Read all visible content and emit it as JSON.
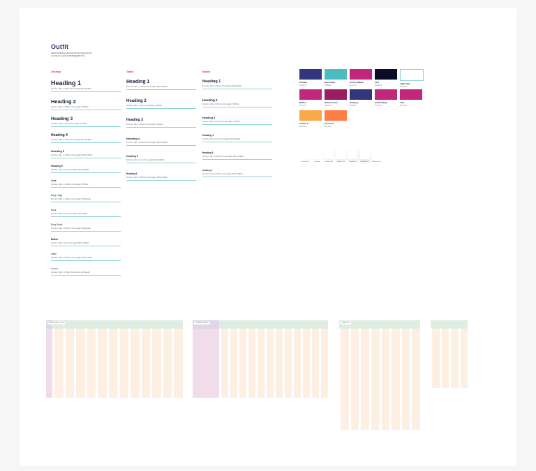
{
  "page": {
    "title": "Outfit",
    "character_set": "AaBbCcDdEeFfGgHhIiJjKkLlMmNnOoPpQqRrSsTtUuVvWwXxYyZz0123456789!@#$%^&*()"
  },
  "typography": {
    "desktop": {
      "label": "Desktop",
      "styles": [
        {
          "name": "Heading 1",
          "size": 9,
          "spec": "Font size: 36px / 2.25rem | Font weight: 800 ExtraBold"
        },
        {
          "name": "Heading 2",
          "size": 7.5,
          "spec": "Font size: 30px / 1.875rem | Font weight: 700 Bold"
        },
        {
          "name": "Heading 3",
          "size": 6.5,
          "spec": "Font size: 24px / 1.5rem | Font weight: 700 Bold"
        },
        {
          "name": "Heading 4",
          "size": 5,
          "spec": "Font size: 20px / 1.25rem | Font weight: 600 SemiBold"
        },
        {
          "name": "Heading 5",
          "size": 4,
          "spec": "Font size: 18px / 1.125rem | Font weight: 600 SemiBold"
        },
        {
          "name": "Heading 6",
          "size": 3.5,
          "spec": "Font size: 16px / 1rem | Font weight: 600 SemiBold"
        },
        {
          "name": "Lead",
          "size": 3.2,
          "spec": "Font size: 18px / 1.125rem | Font weight: 700 Bold"
        },
        {
          "name": "Body Large",
          "size": 3.2,
          "spec": "Font size: 18px / 1.125rem | Font weight: 400 Regular"
        },
        {
          "name": "Body",
          "size": 3.2,
          "spec": "Font size: 16px / 1rem | Font weight: 400 Regular"
        },
        {
          "name": "Body Small",
          "size": 3.2,
          "spec": "Font size: 14px / 0.875rem | Font weight: 400 Regular"
        },
        {
          "name": "Button",
          "size": 3.2,
          "spec": "Font size: 16px / 1rem | Font weight: 600 SemiBold"
        },
        {
          "name": "Label",
          "size": 3.2,
          "spec": "Font size: 14px / 0.875rem | Font weight: 600 SemiBold"
        },
        {
          "name": "Caption",
          "size": 3,
          "spec": "Font size: 12px / 0.75rem | Font weight: 400 Regular"
        }
      ]
    },
    "tablet": {
      "label": "Tablet",
      "styles": [
        {
          "name": "Heading 1",
          "size": 7,
          "spec": "Font size: 30px / 1.875rem | Font weight: 800 ExtraBold"
        },
        {
          "name": "Heading 2",
          "size": 6,
          "spec": "Font size: 24px / 1.5rem | Font weight: 700 Bold"
        },
        {
          "name": "Heading 3",
          "size": 5,
          "spec": "Font size: 20px / 1.25rem | Font weight: 700 Bold"
        },
        {
          "name": "Heading 4",
          "size": 4,
          "spec": "Font size: 18px / 1.125rem | Font weight: 600 SemiBold"
        },
        {
          "name": "Heading 5",
          "size": 3.5,
          "spec": "Font size: 16px / 1rem | Font weight: 600 SemiBold"
        },
        {
          "name": "Heading 6",
          "size": 3.2,
          "spec": "Font size: 14px / 0.875rem | Font weight: 600 SemiBold"
        }
      ]
    },
    "mobile": {
      "label": "Mobile",
      "styles": [
        {
          "name": "Heading 1",
          "size": 5.5,
          "spec": "Font size: 24px / 1.5rem | Font weight: 800 ExtraBold"
        },
        {
          "name": "Heading 2",
          "size": 4.5,
          "spec": "Font size: 20px / 1.25rem | Font weight: 700 Bold"
        },
        {
          "name": "Heading 3",
          "size": 3.8,
          "spec": "Font size: 18px / 1.125rem | Font weight: 700 Bold"
        },
        {
          "name": "Heading 4",
          "size": 3.4,
          "spec": "Font size: 16px / 1rem | Font weight: 600 SemiBold"
        },
        {
          "name": "Heading 5",
          "size": 3.2,
          "spec": "Font size: 14px / 0.875rem | Font weight: 600 SemiBold"
        },
        {
          "name": "Heading 6",
          "size": 3,
          "spec": "Font size: 12px / 0.75rem | Font weight: 600 SemiBold"
        }
      ]
    }
  },
  "colors": [
    {
      "name": "Primary",
      "hex": "#33367F",
      "color": "#33367f"
    },
    {
      "name": "Secondary",
      "hex": "#4BBDC0",
      "color": "#4bbdc0"
    },
    {
      "name": "Accent (Main)",
      "hex": "#C1277A",
      "color": "#c1277a"
    },
    {
      "name": "Text",
      "hex": "#0A0D25",
      "color": "#0a0d25"
    },
    {
      "name": "Light Text",
      "hex": "#FFFFFF",
      "color": "#ffffff"
    },
    {
      "name": "Button",
      "hex": "#C1277A",
      "color": "#c1277a"
    },
    {
      "name": "Button Hover",
      "hex": "#9B1D62",
      "color": "#9b1d62"
    },
    {
      "name": "Heading",
      "hex": "#33367F",
      "color": "#33367f"
    },
    {
      "name": "Subheading",
      "hex": "#C1277A",
      "color": "#c1277a"
    },
    {
      "name": "Link",
      "hex": "#C1277A",
      "color": "#c1277a"
    },
    {
      "name": "Accent 2",
      "hex": "#F8A94A",
      "color": "#f8a94a"
    },
    {
      "name": "Accent 3",
      "hex": "#FD7F45",
      "color": "#fd7f45"
    }
  ],
  "shadows": [
    {
      "label": "Shadow XS"
    },
    {
      "label": "Shadow"
    },
    {
      "label": "Shadow MD"
    },
    {
      "label": "Shadow LG"
    },
    {
      "label": "Shadow XL"
    },
    {
      "label": "Shadow 2XL"
    },
    {
      "label": "Shadow Inner"
    }
  ],
  "grids": [
    {
      "label": "Desktop 1440 - 12 col",
      "columns": 12
    },
    {
      "label": "Desktop w/ sidebar",
      "columns": 12
    },
    {
      "label": "Tablet 8 col",
      "columns": 8
    },
    {
      "label": "Mobile 4 col",
      "columns": 4
    }
  ]
}
